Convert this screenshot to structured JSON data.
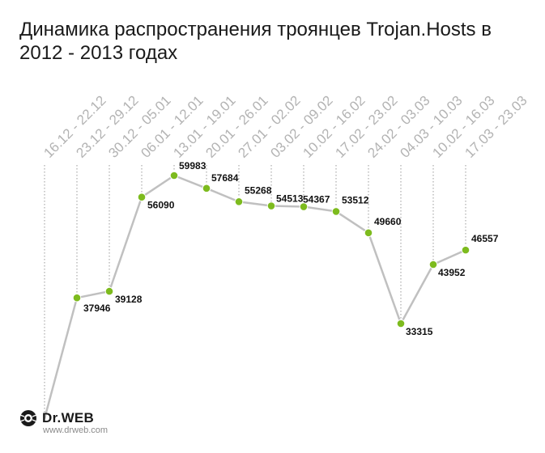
{
  "title": "Динамика распространения троянцев Trojan.Hosts в 2012 - 2013 годах",
  "chart_data": {
    "type": "line",
    "categories": [
      "16.12 - 22.12",
      "23.12 - 29.12",
      "30.12 - 05.01",
      "06.01 - 12.01",
      "13.01 - 19.01",
      "20.01 - 26.01",
      "27.01 - 02.02",
      "03.02 - 09.02",
      "10.02 - 16.02",
      "17.02 - 23.02",
      "24.02 - 03.03",
      "04.03 - 10.03",
      "10.02 - 16.03",
      "17.03 - 23.03"
    ],
    "values": [
      16200,
      37946,
      39128,
      56090,
      59983,
      57684,
      55268,
      54513,
      54367,
      53512,
      49660,
      33315,
      43952,
      46557
    ],
    "value_labels": [
      "",
      "37946",
      "39128",
      "56090",
      "59983",
      "57684",
      "55268",
      "54513",
      "54367",
      "53512",
      "49660",
      "33315",
      "43952",
      "46557"
    ],
    "line_color": "#c0c0c0",
    "point_color": "#7dbb1e",
    "tick_label_color": "#b3b3b3",
    "grid": false,
    "legend": "none"
  },
  "logo": {
    "brand": "Dr.WEB",
    "url": "www.drweb.com"
  }
}
